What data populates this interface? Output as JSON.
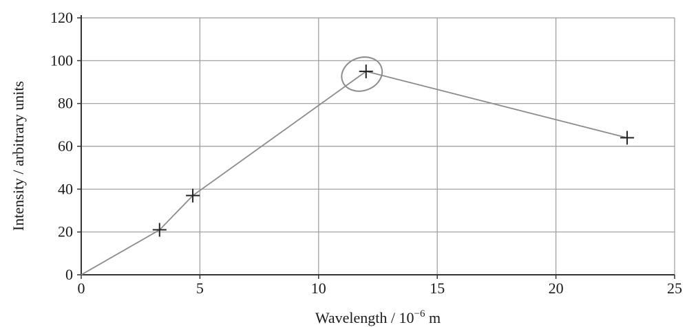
{
  "chart_data": {
    "type": "line",
    "title": "",
    "xlabel": "Wavelength / 10",
    "xlabel_exponent": "−6",
    "xlabel_unit": " m",
    "ylabel": "Intensity / arbitrary units",
    "xlim": [
      0,
      25
    ],
    "ylim": [
      0,
      120
    ],
    "xticks": [
      0,
      5,
      10,
      15,
      20,
      25
    ],
    "yticks": [
      0,
      20,
      40,
      60,
      80,
      100,
      120
    ],
    "grid": true,
    "marker": "plus",
    "series": [
      {
        "x": [
          0,
          3.3,
          4.7,
          12.0,
          23.0
        ],
        "y": [
          0,
          21,
          37,
          95,
          64
        ]
      }
    ],
    "annotations": [
      {
        "type": "circle",
        "x": 12.0,
        "y": 95
      }
    ],
    "colors": {
      "line": "#8c8c8c",
      "grid": "#9a9a9a",
      "axis": "#333333",
      "marker": "#222222"
    }
  }
}
